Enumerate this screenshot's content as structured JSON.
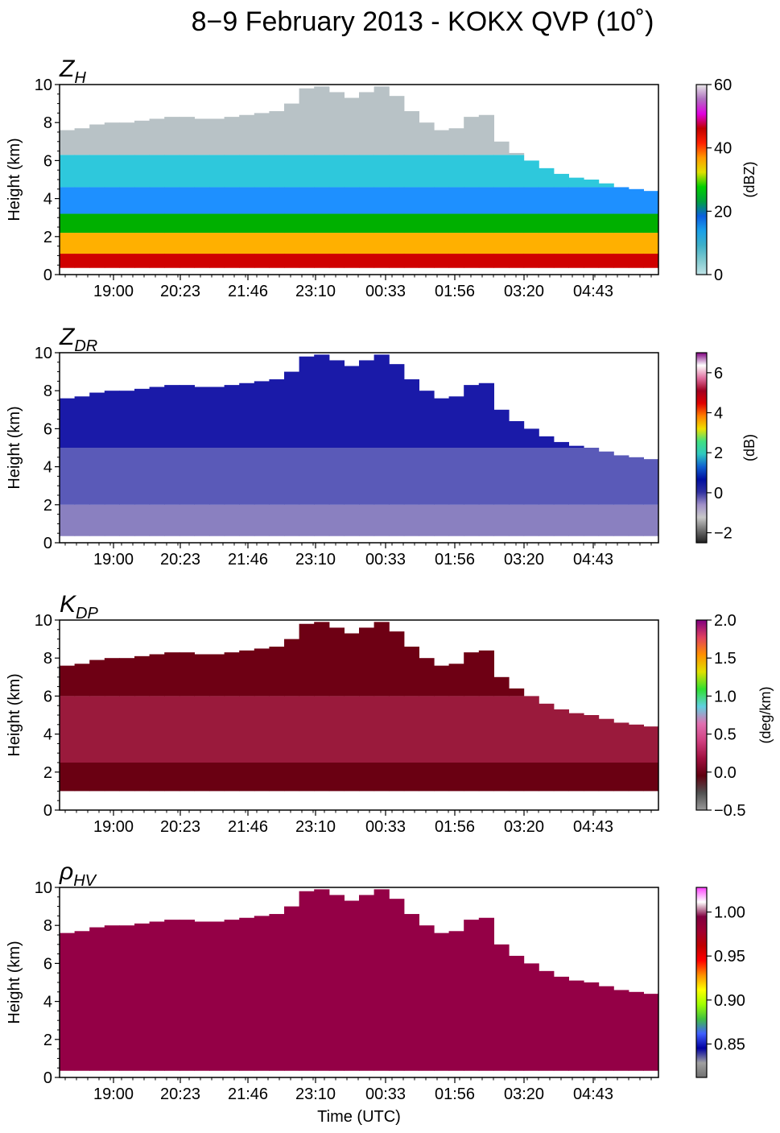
{
  "figure": {
    "title": "8−9 February 2013 - KOKX QVP (10˚)",
    "xlabel": "Time (UTC)"
  },
  "chart_data": [
    {
      "type": "heatmap",
      "panel_title": "Z",
      "panel_title_sub": "H",
      "ylabel": "Height (km)",
      "yticks": [
        "0",
        "2",
        "4",
        "6",
        "8",
        "10"
      ],
      "ylim": [
        0,
        10
      ],
      "xticks": [
        "19:00",
        "20:23",
        "21:46",
        "23:10",
        "00:33",
        "01:56",
        "03:20",
        "04:43"
      ],
      "colorbar": {
        "label": "(dBZ)",
        "ticks": [
          "0",
          "20",
          "40",
          "60"
        ],
        "range": [
          0,
          60
        ],
        "stops": [
          "#bfe3e6",
          "#7fc9cf",
          "#3fb0c8",
          "#1aa0e8",
          "#0b5fe0",
          "#00a040",
          "#00d000",
          "#e0e000",
          "#ff9a00",
          "#ff2000",
          "#c00000",
          "#e000e0",
          "#b070c0",
          "#e8e8e8"
        ]
      },
      "top_km": [
        7.6,
        7.7,
        7.9,
        8.0,
        8.0,
        8.1,
        8.2,
        8.3,
        8.3,
        8.2,
        8.2,
        8.3,
        8.4,
        8.5,
        8.6,
        9.0,
        9.8,
        9.9,
        9.6,
        9.3,
        9.6,
        9.9,
        9.4,
        8.6,
        8.0,
        7.6,
        7.7,
        8.3,
        8.4,
        7.0,
        6.4,
        6.0,
        5.6,
        5.3,
        5.1,
        5.0,
        4.8,
        4.6,
        4.5,
        4.4
      ],
      "bottom_km": 0.35,
      "layers_km": [
        {
          "upper": 1.1,
          "color": "#d00000"
        },
        {
          "upper": 2.2,
          "color": "#ffb000"
        },
        {
          "upper": 3.2,
          "color": "#00b000"
        },
        {
          "upper": 4.6,
          "color": "#1e90ff"
        },
        {
          "upper": 6.3,
          "color": "#2ec8dc"
        },
        {
          "upper": 10.0,
          "color": "#b8c2c6"
        }
      ]
    },
    {
      "type": "heatmap",
      "panel_title": "Z",
      "panel_title_sub": "DR",
      "ylabel": "Height (km)",
      "yticks": [
        "0",
        "2",
        "4",
        "6",
        "8",
        "10"
      ],
      "ylim": [
        0,
        10
      ],
      "xticks": [
        "19:00",
        "20:23",
        "21:46",
        "23:10",
        "00:33",
        "01:56",
        "03:20",
        "04:43"
      ],
      "colorbar": {
        "label": "(dB)",
        "ticks": [
          "−2",
          "0",
          "2",
          "4",
          "6"
        ],
        "range": [
          -2.5,
          7
        ],
        "stops": [
          "#202020",
          "#707070",
          "#c8c8c8",
          "#a090c8",
          "#3030a0",
          "#0010a0",
          "#1060d0",
          "#30c8c0",
          "#40e080",
          "#f0e000",
          "#ff8000",
          "#e00000",
          "#a00020",
          "#e070a0",
          "#ffffff",
          "#800080"
        ]
      },
      "top_km": [
        7.6,
        7.7,
        7.9,
        8.0,
        8.0,
        8.1,
        8.2,
        8.3,
        8.3,
        8.2,
        8.2,
        8.3,
        8.4,
        8.5,
        8.6,
        9.0,
        9.8,
        9.9,
        9.6,
        9.3,
        9.6,
        9.9,
        9.4,
        8.6,
        8.0,
        7.6,
        7.7,
        8.3,
        8.4,
        7.0,
        6.4,
        6.0,
        5.6,
        5.3,
        5.1,
        5.0,
        4.8,
        4.6,
        4.5,
        4.4
      ],
      "bottom_km": 0.35,
      "layers_km": [
        {
          "upper": 2.0,
          "color": "#8a80c0"
        },
        {
          "upper": 5.0,
          "color": "#5a5ab8"
        },
        {
          "upper": 10.0,
          "color": "#1a1aa8"
        }
      ]
    },
    {
      "type": "heatmap",
      "panel_title": "K",
      "panel_title_sub": "DP",
      "ylabel": "Height (km)",
      "yticks": [
        "0",
        "2",
        "4",
        "6",
        "8",
        "10"
      ],
      "ylim": [
        0,
        10
      ],
      "xticks": [
        "19:00",
        "20:23",
        "21:46",
        "23:10",
        "00:33",
        "01:56",
        "03:20",
        "04:43"
      ],
      "colorbar": {
        "label": "(deg/km)",
        "ticks": [
          "−0.5",
          "0.0",
          "0.5",
          "1.0",
          "1.5",
          "2.0"
        ],
        "range": [
          -0.5,
          2
        ],
        "stops": [
          "#9a9a9a",
          "#505050",
          "#600010",
          "#a01040",
          "#d04080",
          "#e070b0",
          "#60d0e0",
          "#30e030",
          "#e0e000",
          "#ff9000",
          "#e04060",
          "#800080"
        ]
      },
      "top_km": [
        7.6,
        7.7,
        7.9,
        8.0,
        8.0,
        8.1,
        8.2,
        8.3,
        8.3,
        8.2,
        8.2,
        8.3,
        8.4,
        8.5,
        8.6,
        9.0,
        9.8,
        9.9,
        9.6,
        9.3,
        9.6,
        9.9,
        9.4,
        8.6,
        8.0,
        7.6,
        7.7,
        8.3,
        8.4,
        7.0,
        6.4,
        6.0,
        5.6,
        5.3,
        5.1,
        5.0,
        4.8,
        4.6,
        4.5,
        4.4
      ],
      "bottom_km": 1.0,
      "layers_km": [
        {
          "upper": 2.5,
          "color": "#6a0012"
        },
        {
          "upper": 6.0,
          "color": "#9a1a3c"
        },
        {
          "upper": 10.0,
          "color": "#6e0014"
        }
      ]
    },
    {
      "type": "heatmap",
      "panel_title": "ρ",
      "panel_title_sub": "HV",
      "ylabel": "Height (km)",
      "yticks": [
        "0",
        "2",
        "4",
        "6",
        "8",
        "10"
      ],
      "ylim": [
        0,
        10
      ],
      "xticks": [
        "19:00",
        "20:23",
        "21:46",
        "23:10",
        "00:33",
        "01:56",
        "03:20",
        "04:43"
      ],
      "colorbar": {
        "label": "",
        "ticks": [
          "0.85",
          "0.90",
          "0.95",
          "1.00"
        ],
        "range": [
          0.812,
          1.028
        ],
        "stops": [
          "#707070",
          "#a0a0a0",
          "#0000a0",
          "#4060ff",
          "#40c040",
          "#a0ff00",
          "#ffff00",
          "#ff9000",
          "#ff0000",
          "#c00000",
          "#a00030",
          "#800040",
          "#ffffff",
          "#ff40ff"
        ]
      },
      "top_km": [
        7.6,
        7.7,
        7.9,
        8.0,
        8.0,
        8.1,
        8.2,
        8.3,
        8.3,
        8.2,
        8.2,
        8.3,
        8.4,
        8.5,
        8.6,
        9.0,
        9.8,
        9.9,
        9.6,
        9.3,
        9.6,
        9.9,
        9.4,
        8.6,
        8.0,
        7.6,
        7.7,
        8.3,
        8.4,
        7.0,
        6.4,
        6.0,
        5.6,
        5.3,
        5.1,
        5.0,
        4.8,
        4.6,
        4.5,
        4.4
      ],
      "bottom_km": 0.35,
      "layers_km": [
        {
          "upper": 10.0,
          "color": "#940046"
        }
      ]
    }
  ]
}
